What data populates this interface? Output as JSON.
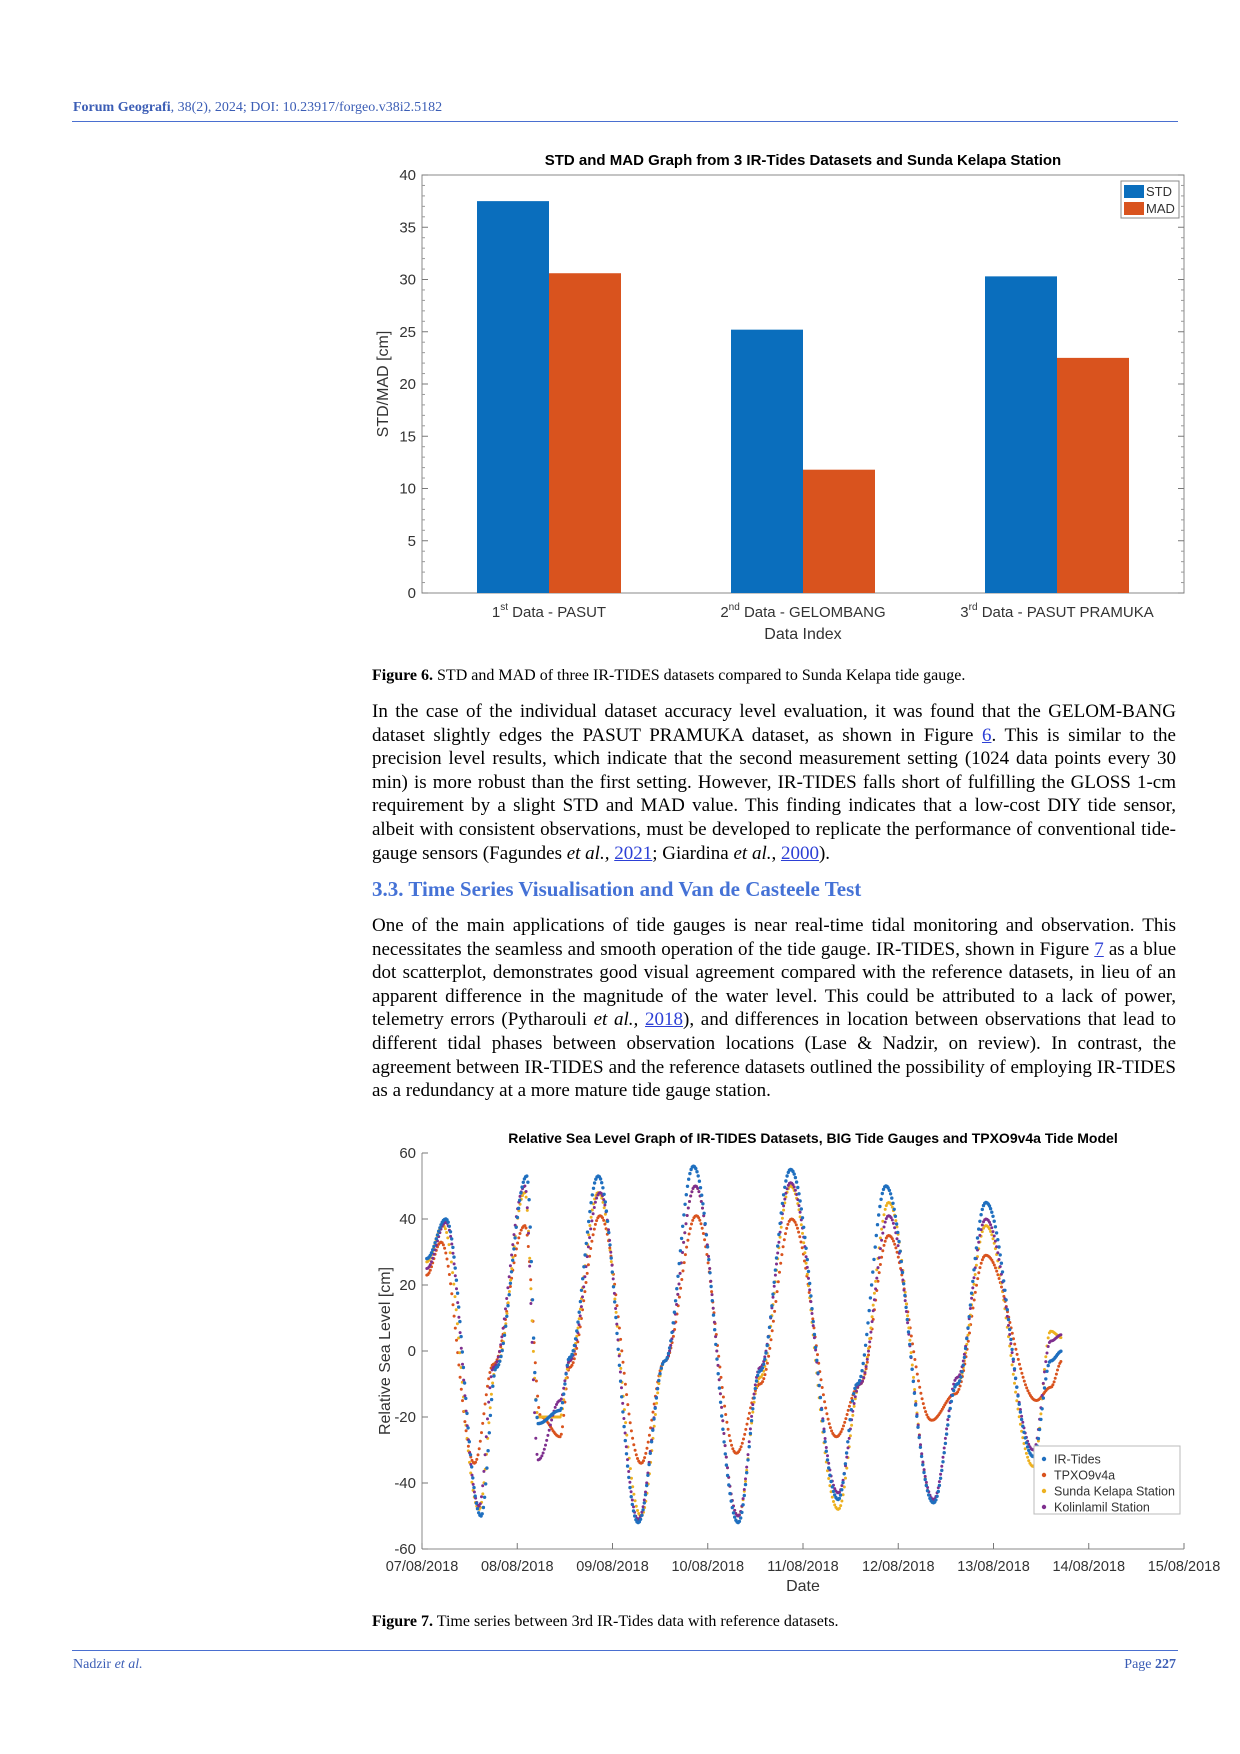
{
  "header": {
    "journal": "Forum Geografi",
    "rest": ", 38(2), 2024; DOI: 10.23917/forgeo.v38i2.5182"
  },
  "footer": {
    "author": "Nadzir",
    "etal": " et al.",
    "page_label": "Page ",
    "page_number": "227"
  },
  "figure6": {
    "caption_label": "Figure 6.",
    "caption_text": " STD and MAD of three IR-TIDES datasets compared to Sunda Kelapa tide gauge."
  },
  "paragraph1": {
    "t1": "In the case of the individual dataset accuracy level evaluation, it was found that the GELOM-BANG dataset slightly edges the PASUT PRAMUKA dataset, as shown in Figure ",
    "link1": "6",
    "t2": ". This is similar to the precision level results, which indicate that the second measurement setting (1024 data points every 30 min) is more robust than the first setting. However, IR-TIDES falls short of fulfilling the GLOSS 1-cm requirement by a slight STD and MAD value. This finding indicates that a low-cost DIY tide sensor, albeit with consistent observations, must be developed to replicate the performance of conventional tide-gauge sensors (Fagundes ",
    "etal1": "et al.,",
    "link2": "2021",
    "t3": "; Giardina ",
    "etal2": "et al.",
    "t4": ", ",
    "link3": "2000",
    "t5": ")."
  },
  "section_heading": "3.3. Time Series Visualisation and Van de Casteele Test",
  "paragraph2": {
    "t1": "One of the main applications of tide gauges is near real-time tidal monitoring and observation. This necessitates the seamless and smooth operation of the tide gauge. IR-TIDES, shown in Figure ",
    "link1": "7",
    "t2": " as a blue dot scatterplot, demonstrates good visual agreement compared with the reference datasets, in lieu of an apparent difference in the magnitude of the water level. This could be attributed to a lack of power, telemetry errors (Pytharouli ",
    "etal1": "et al.,",
    "t3": " ",
    "link2": "2018",
    "t4": "), and differences in location between observations that lead to different tidal phases between observation locations (Lase & Nadzir, on review). In contrast, the agreement between IR-TIDES and the reference datasets outlined the possibility of employing IR-TIDES as a redundancy at a more mature tide gauge station."
  },
  "figure7": {
    "caption_label": "Figure 7.",
    "caption_text": " Time series between 3rd IR-Tides data with reference datasets."
  },
  "chart_data": [
    {
      "type": "bar",
      "title": "STD and MAD Graph from 3 IR-Tides Datasets and Sunda Kelapa Station",
      "xlabel": "Data Index",
      "ylabel": "STD/MAD [cm]",
      "ylim": [
        0,
        40
      ],
      "yticks": [
        0,
        5,
        10,
        15,
        20,
        25,
        30,
        35,
        40
      ],
      "categories": [
        {
          "sup_num": "1",
          "sup": "st",
          "rest": " Data - PASUT"
        },
        {
          "sup_num": "2",
          "sup": "nd",
          "rest": " Data - GELOMBANG"
        },
        {
          "sup_num": "3",
          "sup": "rd",
          "rest": " Data - PASUT PRAMUKA"
        }
      ],
      "series": [
        {
          "name": "STD",
          "color": "#0a6ebd",
          "values": [
            37.5,
            25.2,
            30.3
          ]
        },
        {
          "name": "MAD",
          "color": "#d9531e",
          "values": [
            30.6,
            11.8,
            22.5
          ]
        }
      ],
      "legend_position": "top-right",
      "grid": false
    },
    {
      "type": "scatter",
      "title": "Relative Sea Level Graph of IR-TIDES Datasets, BIG Tide Gauges and TPXO9v4a Tide Model",
      "xlabel": "Date",
      "ylabel": "Relative Sea Level [cm]",
      "ylim": [
        -60,
        60
      ],
      "yticks": [
        -60,
        -40,
        -20,
        0,
        20,
        40,
        60
      ],
      "xlim": [
        "07/08/2018",
        "15/08/2018"
      ],
      "xticks": [
        "07/08/2018",
        "08/08/2018",
        "09/08/2018",
        "10/08/2018",
        "11/08/2018",
        "12/08/2018",
        "13/08/2018",
        "14/08/2018",
        "15/08/2018"
      ],
      "legend_position": "bottom-right",
      "grid": false,
      "series": [
        {
          "name": "IR-Tides",
          "color": "#1f6fbf",
          "extremes": [
            [
              0.05,
              28
            ],
            [
              0.25,
              40
            ],
            [
              0.62,
              -50
            ],
            [
              0.78,
              -5
            ],
            [
              1.1,
              53
            ],
            [
              1.22,
              -22
            ],
            [
              1.45,
              -18
            ],
            [
              1.55,
              -2
            ],
            [
              1.85,
              53
            ],
            [
              2.27,
              -52
            ],
            [
              2.55,
              -3
            ],
            [
              2.85,
              56
            ],
            [
              3.32,
              -52
            ],
            [
              3.55,
              -6
            ],
            [
              3.87,
              55
            ],
            [
              4.37,
              -45
            ],
            [
              4.57,
              -10
            ],
            [
              4.87,
              50
            ],
            [
              5.37,
              -46
            ],
            [
              5.62,
              -10
            ],
            [
              5.92,
              45
            ],
            [
              6.42,
              -32
            ],
            [
              6.6,
              -3
            ],
            [
              6.72,
              0
            ]
          ]
        },
        {
          "name": "TPXO9v4a",
          "color": "#d9531e",
          "extremes": [
            [
              0.05,
              23
            ],
            [
              0.2,
              33
            ],
            [
              0.55,
              -34
            ],
            [
              0.75,
              -4
            ],
            [
              1.08,
              38
            ],
            [
              1.25,
              -20
            ],
            [
              1.45,
              -26
            ],
            [
              1.55,
              -5
            ],
            [
              1.87,
              41
            ],
            [
              2.3,
              -34
            ],
            [
              2.55,
              -3
            ],
            [
              2.88,
              41
            ],
            [
              3.3,
              -31
            ],
            [
              3.55,
              -10
            ],
            [
              3.88,
              40
            ],
            [
              4.35,
              -26
            ],
            [
              4.6,
              -10
            ],
            [
              4.9,
              35
            ],
            [
              5.35,
              -21
            ],
            [
              5.6,
              -13
            ],
            [
              5.92,
              29
            ],
            [
              6.45,
              -15
            ],
            [
              6.6,
              -11
            ],
            [
              6.72,
              -3
            ]
          ]
        },
        {
          "name": "Sunda Kelapa Station",
          "color": "#edb120",
          "extremes": [
            [
              0.05,
              27
            ],
            [
              0.22,
              38
            ],
            [
              0.6,
              -48
            ],
            [
              0.78,
              -5
            ],
            [
              1.08,
              48
            ],
            [
              1.22,
              -20
            ],
            [
              1.45,
              -20
            ],
            [
              1.55,
              -3
            ],
            [
              1.85,
              48
            ],
            [
              2.3,
              -50
            ],
            [
              2.55,
              -3
            ],
            [
              2.87,
              50
            ],
            [
              3.32,
              -50
            ],
            [
              3.55,
              -8
            ],
            [
              3.87,
              50
            ],
            [
              4.37,
              -48
            ],
            [
              4.6,
              -10
            ],
            [
              4.9,
              45
            ],
            [
              5.37,
              -46
            ],
            [
              5.62,
              -10
            ],
            [
              5.92,
              38
            ],
            [
              6.42,
              -35
            ],
            [
              6.6,
              6
            ],
            [
              6.72,
              4
            ]
          ]
        },
        {
          "name": "Kolinlamil Station",
          "color": "#7e2f8e",
          "extremes": [
            [
              0.05,
              25
            ],
            [
              0.25,
              39
            ],
            [
              0.6,
              -47
            ],
            [
              0.75,
              -5
            ],
            [
              1.08,
              50
            ],
            [
              1.22,
              -33
            ],
            [
              1.45,
              -15
            ],
            [
              1.55,
              -3
            ],
            [
              1.87,
              48
            ],
            [
              2.27,
              -51
            ],
            [
              2.55,
              -3
            ],
            [
              2.87,
              50
            ],
            [
              3.32,
              -50
            ],
            [
              3.55,
              -5
            ],
            [
              3.87,
              51
            ],
            [
              4.37,
              -43
            ],
            [
              4.6,
              -10
            ],
            [
              4.9,
              41
            ],
            [
              5.37,
              -45
            ],
            [
              5.62,
              -8
            ],
            [
              5.92,
              40
            ],
            [
              6.42,
              -30
            ],
            [
              6.6,
              3
            ],
            [
              6.72,
              5
            ]
          ]
        }
      ]
    }
  ]
}
